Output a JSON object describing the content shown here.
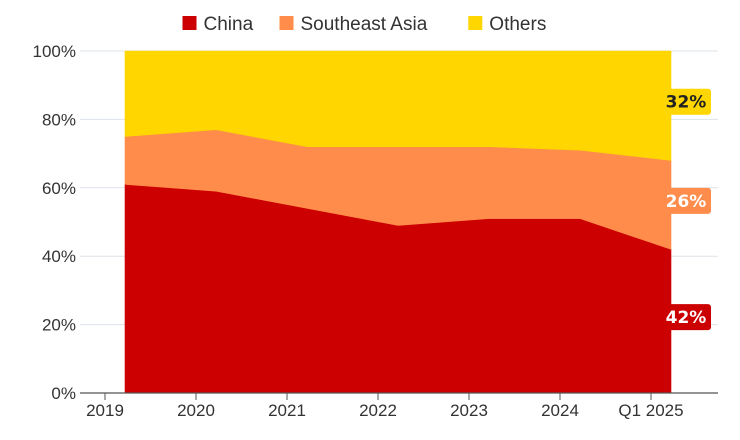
{
  "chart_data": {
    "type": "area",
    "stacked": true,
    "categories": [
      "2019",
      "2020",
      "2021",
      "2022",
      "2023",
      "2024",
      "Q1 2025"
    ],
    "series": [
      {
        "name": "China",
        "color": "#cc0000",
        "values": [
          61,
          59,
          54,
          49,
          51,
          51,
          42
        ]
      },
      {
        "name": "Southeast Asia",
        "color": "#ff8c4a",
        "values": [
          14,
          18,
          18,
          23,
          21,
          20,
          26
        ]
      },
      {
        "name": "Others",
        "color": "#ffd600",
        "values": [
          25,
          23,
          28,
          28,
          28,
          29,
          32
        ]
      }
    ],
    "end_labels": [
      {
        "series": "Others",
        "text": "32%",
        "color": "#ffd600",
        "text_color": "#222222"
      },
      {
        "series": "Southeast Asia",
        "text": "26%",
        "color": "#ff8c4a",
        "text_color": "#ffffff"
      },
      {
        "series": "China",
        "text": "42%",
        "color": "#cc0000",
        "text_color": "#ffffff"
      }
    ],
    "yticks": [
      "0%",
      "20%",
      "40%",
      "60%",
      "80%",
      "100%"
    ],
    "ylim": [
      0,
      100
    ],
    "grid": true,
    "legend": "top-center",
    "title": "",
    "xlabel": "",
    "ylabel": ""
  }
}
